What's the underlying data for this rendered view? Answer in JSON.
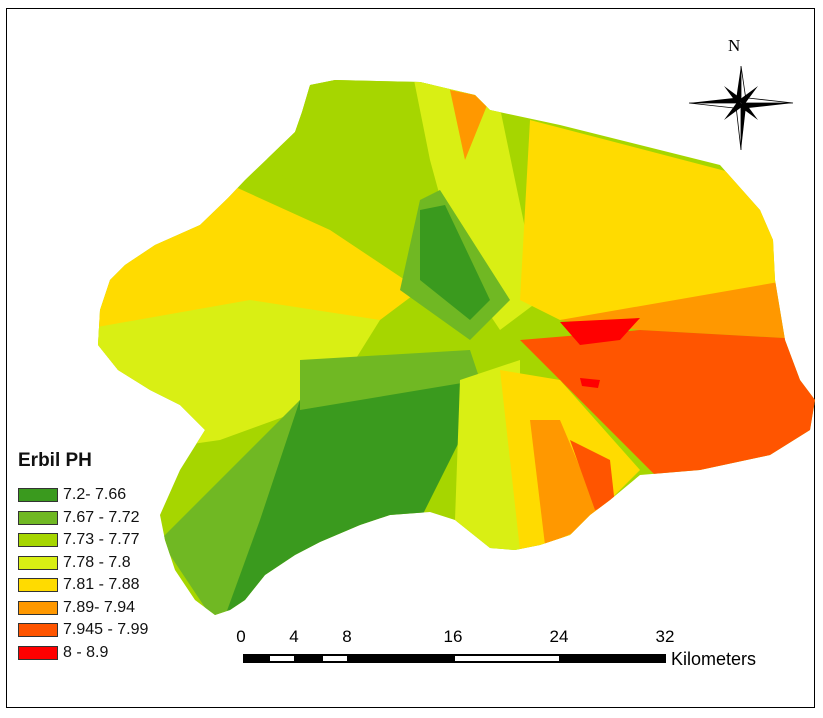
{
  "map": {
    "north_label": "N",
    "legend": {
      "title": "Erbil PH",
      "items": [
        {
          "label": "7.2- 7.66",
          "color": "#3a9a1e"
        },
        {
          "label": "7.67 - 7.72",
          "color": "#70b823"
        },
        {
          "label": "7.73 - 7.77",
          "color": "#a6d600"
        },
        {
          "label": "7.78 - 7.8",
          "color": "#d9ef14"
        },
        {
          "label": "7.81 - 7.88",
          "color": "#ffdb00"
        },
        {
          "label": "7.89- 7.94",
          "color": "#ff9800"
        },
        {
          "label": "7.945 - 7.99",
          "color": "#ff5500"
        },
        {
          "label": "8 - 8.9",
          "color": "#ff0000"
        }
      ]
    },
    "scale_bar": {
      "ticks": [
        "0",
        "4",
        "8",
        "16",
        "24",
        "32"
      ],
      "units": "Kilometers"
    }
  }
}
